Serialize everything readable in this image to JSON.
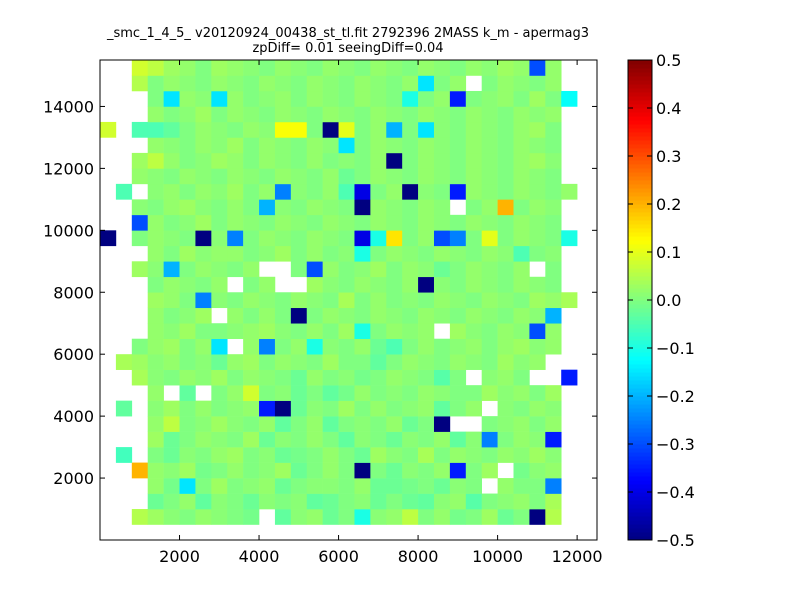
{
  "chart_data": {
    "type": "heatmap",
    "title": "_smc_1_4_5_ v20120924_00438_st_tl.fit 2792396 2MASS k_m - apermag3",
    "subtitle": "zpDiff= 0.01 seeingDiff=0.04",
    "xlabel": "",
    "ylabel": "",
    "xlim": [
      0,
      12500
    ],
    "ylim": [
      0,
      15500
    ],
    "x_ticks": [
      2000,
      4000,
      6000,
      8000,
      10000,
      12000
    ],
    "y_ticks": [
      2000,
      4000,
      6000,
      8000,
      10000,
      12000,
      14000
    ],
    "colorbar": {
      "colormap": "jet",
      "vmin": -0.5,
      "vmax": 0.5,
      "ticks": [
        -0.5,
        -0.4,
        -0.3,
        -0.2,
        -0.1,
        0.0,
        0.1,
        0.2,
        0.3,
        0.4,
        0.5
      ],
      "tick_labels": [
        "−0.5",
        "−0.4",
        "−0.3",
        "−0.2",
        "−0.1",
        "0.0",
        "0.1",
        "0.2",
        "0.3",
        "0.4",
        "0.5"
      ]
    },
    "grid": false,
    "cells_x_start": 0,
    "cells_y_start": 0,
    "cell_width": 400,
    "cell_height": 500,
    "columns": 31,
    "rows": 31,
    "values_note_rows_bottom_to_top": true,
    "values": [
      [
        null,
        null,
        null,
        null,
        null,
        null,
        null,
        null,
        null,
        null,
        null,
        null,
        null,
        null,
        null,
        null,
        null,
        null,
        null,
        null,
        null,
        null,
        null,
        null,
        null,
        null,
        null,
        null,
        null,
        null,
        null
      ],
      [
        null,
        null,
        0.05,
        0.03,
        0.01,
        0.0,
        0.02,
        0.01,
        0.0,
        -0.01,
        null,
        -0.03,
        0.01,
        0.02,
        -0.02,
        0.0,
        -0.1,
        0.01,
        0.02,
        0.06,
        0.0,
        0.02,
        -0.01,
        0.0,
        0.03,
        -0.02,
        0.0,
        -0.5,
        0.05,
        null,
        null
      ],
      [
        null,
        null,
        null,
        -0.02,
        0.0,
        0.02,
        -0.03,
        0.01,
        0.0,
        -0.02,
        0.01,
        0.0,
        0.01,
        -0.03,
        -0.02,
        0.0,
        0.01,
        -0.02,
        0.0,
        -0.02,
        -0.03,
        0.01,
        0.02,
        -0.04,
        0.0,
        0.01,
        0.02,
        0.0,
        0.04,
        null,
        null
      ],
      [
        null,
        null,
        null,
        0.02,
        -0.01,
        -0.15,
        0.0,
        0.03,
        0.0,
        0.01,
        0.02,
        -0.02,
        0.0,
        0.01,
        0.01,
        0.0,
        0.02,
        -0.02,
        -0.02,
        -0.01,
        0.0,
        -0.02,
        0.01,
        0.0,
        null,
        0.02,
        0.0,
        0.0,
        -0.25,
        null,
        null
      ],
      [
        null,
        null,
        0.2,
        0.02,
        0.01,
        0.03,
        -0.01,
        0.0,
        0.02,
        0.0,
        0.01,
        0.03,
        -0.02,
        0.0,
        0.02,
        0.0,
        -0.5,
        0.0,
        -0.02,
        0.01,
        0.0,
        0.02,
        -0.35,
        0.0,
        0.03,
        null,
        -0.01,
        0.01,
        0.02,
        null,
        null
      ],
      [
        null,
        -0.06,
        null,
        0.0,
        -0.02,
        0.01,
        0.0,
        0.02,
        0.03,
        0.0,
        0.01,
        -0.02,
        -0.01,
        0.0,
        0.02,
        0.0,
        -0.02,
        0.03,
        0.01,
        0.0,
        0.04,
        0.0,
        0.02,
        0.01,
        0.0,
        0.02,
        0.01,
        0.03,
        0.01,
        null,
        null
      ],
      [
        null,
        null,
        null,
        0.03,
        -0.02,
        0.0,
        0.02,
        0.01,
        0.0,
        0.03,
        -0.02,
        0.01,
        0.0,
        0.02,
        0.0,
        -0.03,
        0.01,
        0.0,
        -0.02,
        0.01,
        0.0,
        0.02,
        -0.03,
        0.01,
        -0.25,
        0.0,
        0.02,
        0.01,
        -0.35,
        null,
        null
      ],
      [
        null,
        null,
        null,
        0.02,
        0.06,
        0.0,
        0.01,
        0.03,
        0.01,
        0.0,
        0.02,
        -0.03,
        0.0,
        0.02,
        -0.03,
        0.0,
        0.01,
        0.0,
        0.02,
        -0.02,
        0.0,
        -0.55,
        null,
        null,
        0.0,
        0.01,
        0.02,
        0.0,
        0.02,
        null,
        null
      ],
      [
        null,
        -0.03,
        null,
        0.01,
        0.03,
        0.0,
        0.02,
        0.0,
        0.01,
        0.02,
        -0.35,
        -0.5,
        -0.02,
        0.01,
        0.0,
        0.03,
        0.0,
        0.02,
        0.0,
        0.01,
        0.02,
        -0.03,
        0.0,
        0.02,
        null,
        0.01,
        0.0,
        0.02,
        0.01,
        null,
        null
      ],
      [
        null,
        null,
        null,
        0.02,
        null,
        -0.03,
        null,
        0.0,
        0.02,
        0.08,
        0.0,
        0.01,
        -0.02,
        0.0,
        -0.03,
        -0.01,
        0.02,
        0.0,
        0.01,
        0.0,
        0.02,
        0.01,
        0.0,
        0.0,
        0.03,
        0.01,
        0.02,
        0.0,
        0.03,
        null,
        null
      ],
      [
        null,
        null,
        0.04,
        0.01,
        0.0,
        0.02,
        0.01,
        0.03,
        0.0,
        0.02,
        0.01,
        0.0,
        -0.02,
        0.02,
        0.0,
        0.01,
        -0.01,
        0.0,
        0.02,
        0.01,
        0.0,
        -0.04,
        0.0,
        null,
        0.01,
        0.02,
        0.0,
        null,
        null,
        -0.35,
        null
      ],
      [
        null,
        0.04,
        0.03,
        0.01,
        0.02,
        0.0,
        0.01,
        -0.02,
        0.02,
        0.03,
        0.0,
        0.02,
        0.01,
        0.0,
        0.03,
        0.0,
        0.0,
        -0.03,
        0.0,
        0.02,
        0.01,
        0.0,
        0.02,
        0.01,
        0.0,
        0.03,
        0.01,
        0.02,
        null,
        null,
        null
      ],
      [
        null,
        null,
        0.0,
        0.02,
        0.03,
        0.0,
        0.02,
        -0.15,
        null,
        0.02,
        -0.25,
        0.0,
        0.02,
        -0.1,
        0.01,
        0.0,
        0.02,
        -0.02,
        -0.05,
        0.0,
        0.02,
        0.0,
        0.01,
        0.02,
        0.0,
        0.02,
        0.03,
        0.01,
        0.02,
        null,
        null
      ],
      [
        null,
        null,
        null,
        0.02,
        0.01,
        0.03,
        0.0,
        0.0,
        0.01,
        0.02,
        0.03,
        0.01,
        0.0,
        0.02,
        0.0,
        0.03,
        -0.1,
        0.0,
        0.02,
        0.01,
        0.02,
        null,
        0.03,
        0.01,
        0.0,
        0.02,
        0.01,
        -0.3,
        0.02,
        null,
        null
      ],
      [
        null,
        null,
        null,
        0.02,
        0.0,
        0.01,
        0.03,
        null,
        0.02,
        0.0,
        0.02,
        0.0,
        -0.55,
        0.0,
        0.02,
        0.01,
        0.0,
        0.02,
        0.01,
        0.0,
        0.02,
        0.01,
        0.0,
        0.02,
        0.01,
        0.0,
        0.02,
        0.01,
        -0.2,
        null,
        null
      ],
      [
        null,
        null,
        null,
        0.03,
        0.02,
        0.0,
        -0.25,
        0.01,
        0.0,
        0.02,
        0.01,
        0.0,
        0.02,
        0.01,
        0.0,
        0.04,
        0.0,
        0.02,
        0.0,
        0.01,
        0.0,
        0.02,
        0.01,
        0.0,
        0.02,
        0.01,
        0.0,
        0.03,
        0.02,
        0.04,
        null
      ],
      [
        null,
        null,
        null,
        0.0,
        0.02,
        0.01,
        0.0,
        0.02,
        null,
        0.0,
        0.02,
        null,
        null,
        0.03,
        0.01,
        0.0,
        0.02,
        0.01,
        0.0,
        0.02,
        -0.5,
        0.01,
        0.0,
        0.02,
        0.01,
        0.0,
        0.02,
        0.01,
        0.0,
        null,
        null
      ],
      [
        null,
        null,
        0.03,
        0.01,
        -0.2,
        0.0,
        0.02,
        0.01,
        0.0,
        0.02,
        null,
        null,
        0.0,
        -0.3,
        0.02,
        0.0,
        0.01,
        0.03,
        0.0,
        0.02,
        0.01,
        -0.02,
        0.0,
        0.02,
        0.01,
        0.0,
        0.02,
        null,
        0.0,
        null,
        null
      ],
      [
        null,
        null,
        null,
        0.02,
        0.0,
        0.03,
        0.01,
        0.02,
        0.02,
        0.0,
        0.01,
        0.03,
        0.0,
        0.02,
        0.0,
        0.01,
        -0.1,
        0.0,
        0.02,
        0.01,
        0.0,
        0.02,
        0.01,
        0.0,
        0.02,
        0.01,
        -0.05,
        0.0,
        0.01,
        null,
        null
      ],
      [
        -0.5,
        null,
        0.0,
        0.02,
        0.01,
        0.0,
        -0.5,
        0.01,
        -0.25,
        0.0,
        0.02,
        0.01,
        0.0,
        0.02,
        0.01,
        0.0,
        -0.4,
        -0.1,
        0.15,
        0.0,
        0.02,
        -0.3,
        -0.25,
        0.0,
        0.1,
        0.0,
        0.02,
        0.01,
        0.0,
        -0.1,
        null
      ],
      [
        null,
        null,
        -0.3,
        0.02,
        0.0,
        0.01,
        0.03,
        0.0,
        0.02,
        0.01,
        0.0,
        0.02,
        0.01,
        0.0,
        0.02,
        0.01,
        0.0,
        0.02,
        0.01,
        0.0,
        0.02,
        0.01,
        0.0,
        0.02,
        0.01,
        0.0,
        0.02,
        0.01,
        0.0,
        null,
        null
      ],
      [
        null,
        null,
        0.01,
        0.0,
        0.02,
        0.03,
        0.01,
        0.0,
        0.02,
        0.0,
        -0.2,
        0.01,
        0.0,
        0.02,
        0.01,
        0.0,
        -0.5,
        0.02,
        0.01,
        0.0,
        0.02,
        0.01,
        null,
        0.0,
        0.02,
        0.2,
        0.0,
        0.02,
        0.01,
        null,
        null
      ],
      [
        null,
        -0.05,
        null,
        0.01,
        0.02,
        0.0,
        0.02,
        0.01,
        0.03,
        0.0,
        0.02,
        -0.25,
        0.01,
        0.0,
        0.02,
        -0.05,
        -0.4,
        0.0,
        0.02,
        -0.5,
        0.01,
        0.0,
        -0.35,
        0.02,
        0.01,
        0.0,
        0.02,
        0.01,
        0.0,
        0.02,
        null
      ],
      [
        null,
        null,
        0.02,
        0.01,
        0.0,
        0.02,
        0.01,
        0.0,
        0.02,
        0.01,
        0.0,
        0.02,
        0.01,
        0.0,
        0.02,
        -0.02,
        0.0,
        0.02,
        0.01,
        0.0,
        0.02,
        0.01,
        0.0,
        0.02,
        0.01,
        0.0,
        0.02,
        0.01,
        0.0,
        null,
        null
      ],
      [
        null,
        null,
        0.03,
        0.06,
        0.02,
        0.0,
        0.01,
        0.03,
        0.02,
        0.0,
        0.02,
        0.01,
        0.0,
        0.02,
        0.0,
        0.01,
        0.0,
        0.02,
        -0.55,
        0.0,
        0.02,
        0.01,
        0.0,
        0.02,
        0.01,
        0.0,
        0.02,
        0.03,
        0.01,
        null,
        null
      ],
      [
        null,
        null,
        null,
        0.02,
        0.01,
        0.0,
        0.02,
        0.01,
        0.03,
        0.0,
        0.02,
        0.01,
        0.0,
        0.02,
        0.01,
        -0.15,
        0.0,
        0.02,
        0.01,
        0.0,
        0.02,
        0.01,
        0.0,
        0.02,
        0.01,
        0.0,
        0.02,
        0.01,
        0.0,
        null,
        null
      ],
      [
        0.08,
        null,
        -0.05,
        -0.05,
        -0.03,
        0.0,
        0.02,
        0.01,
        0.0,
        0.02,
        0.01,
        0.12,
        0.12,
        0.0,
        -0.55,
        0.1,
        0.0,
        0.02,
        -0.2,
        0.0,
        -0.15,
        0.01,
        0.0,
        0.02,
        0.01,
        0.0,
        0.02,
        0.03,
        0.0,
        null,
        null
      ],
      [
        null,
        null,
        null,
        0.02,
        0.0,
        0.01,
        0.03,
        0.0,
        0.02,
        0.01,
        0.0,
        0.02,
        0.01,
        0.0,
        0.02,
        0.01,
        0.0,
        0.02,
        0.01,
        0.0,
        0.02,
        0.01,
        0.0,
        0.02,
        0.01,
        0.0,
        0.02,
        0.01,
        0.02,
        null,
        null
      ],
      [
        null,
        null,
        null,
        0.0,
        -0.15,
        0.02,
        0.01,
        -0.15,
        0.02,
        0.0,
        0.01,
        0.02,
        0.0,
        0.02,
        0.01,
        0.0,
        0.02,
        0.01,
        0.0,
        -0.1,
        0.0,
        0.02,
        -0.35,
        0.0,
        0.01,
        0.02,
        0.0,
        0.03,
        0.0,
        -0.12,
        null
      ],
      [
        null,
        null,
        0.05,
        0.0,
        0.02,
        0.01,
        0.0,
        0.02,
        0.01,
        0.0,
        0.02,
        0.01,
        0.0,
        0.02,
        0.01,
        0.0,
        0.02,
        0.01,
        0.0,
        0.02,
        -0.15,
        0.0,
        0.02,
        null,
        0.0,
        0.02,
        0.01,
        0.0,
        0.02,
        null,
        null
      ],
      [
        null,
        null,
        0.08,
        0.06,
        0.03,
        0.02,
        0.0,
        0.03,
        0.02,
        0.01,
        0.0,
        0.02,
        0.01,
        0.0,
        0.02,
        0.01,
        0.0,
        0.02,
        0.01,
        0.0,
        0.02,
        0.01,
        0.0,
        0.02,
        0.01,
        0.03,
        0.02,
        -0.3,
        0.02,
        null,
        null
      ]
    ]
  }
}
